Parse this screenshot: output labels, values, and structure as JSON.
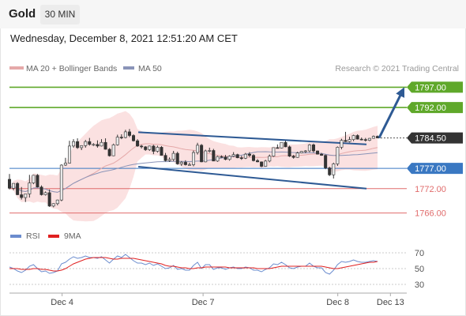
{
  "header": {
    "symbol": "Gold",
    "timeframe": "30 MIN",
    "datetime": "Wednesday, December 8, 2021 12:51:20 AM CET"
  },
  "legend": {
    "ma20_label": "MA 20 + Bollinger Bands",
    "ma50_label": "MA 50",
    "credit": "Research © 2021 Trading Central",
    "rsi_label": "RSI",
    "rsi_ma_label": "9MA"
  },
  "colors": {
    "candle_up": "#e8e8e8",
    "candle_down": "#333333",
    "resistance": "#5fa82a",
    "pivot": "#3a78c2",
    "support": "#e06b6b",
    "last_price": "#333333",
    "channel": "#2e5a94",
    "bollinger": "#fadada",
    "ma20": "#e5a9a9",
    "ma50": "#8a94b8",
    "rsi": "#6b8cce",
    "rsi_ma": "#e02020"
  },
  "chart_data": [
    {
      "type": "candlestick",
      "title": "Gold",
      "timeframe": "30 MIN",
      "x_ticks": [
        "Dec 4",
        "Dec 7",
        "Dec 8",
        "Dec 13"
      ],
      "ylim": [
        1763,
        1800
      ],
      "levels": [
        {
          "value": 1797.0,
          "label": "1797.00",
          "kind": "resistance"
        },
        {
          "value": 1792.0,
          "label": "1792.00",
          "kind": "resistance"
        },
        {
          "value": 1784.5,
          "label": "1784.50",
          "kind": "last"
        },
        {
          "value": 1777.0,
          "label": "1777.00",
          "kind": "pivot"
        },
        {
          "value": 1772.0,
          "label": "1772.00",
          "kind": "support"
        },
        {
          "value": 1766.0,
          "label": "1766.00",
          "kind": "support"
        }
      ],
      "channel": {
        "upper": [
          [
            0.35,
            1785.9
          ],
          [
            0.97,
            1782.9
          ]
        ],
        "lower": [
          [
            0.35,
            1777.4
          ],
          [
            0.97,
            1772.0
          ]
        ]
      },
      "forecast_arrow": {
        "from": 1784.5,
        "to": 1797.0
      },
      "series": {
        "open": [
          1774.3,
          1772.1,
          1773.3,
          1770.5,
          1769.8,
          1770.7,
          1773.4,
          1775.3,
          1772.4,
          1770.5,
          1771.0,
          1767.7,
          1768.3,
          1769.2,
          1777.8,
          1778.3,
          1782.5,
          1783.6,
          1782.1,
          1782.6,
          1783.6,
          1782.9,
          1782.9,
          1782.5,
          1783.4,
          1781.7,
          1780.1,
          1782.8,
          1784.7,
          1784.6,
          1786.0,
          1785.1,
          1783.8,
          1782.5,
          1782.3,
          1781.6,
          1782.5,
          1781.2,
          1782.2,
          1780.2,
          1778.9,
          1779.2,
          1780.7,
          1778.1,
          1778.5,
          1777.9,
          1777.9,
          1780.9,
          1782.7,
          1778.6,
          1781.3,
          1781.4,
          1778.8,
          1779.9,
          1779.8,
          1779.2,
          1780.0,
          1780.4,
          1779.6,
          1779.5,
          1780.5,
          1780.2,
          1778.9,
          1778.6,
          1777.5,
          1778.8,
          1780.0,
          1782.1,
          1782.0,
          1783.4,
          1782.3,
          1780.0,
          1779.7,
          1780.8,
          1781.2,
          1781.3,
          1782.8,
          1781.3,
          1780.5,
          1780.2,
          1777.1,
          1775.4,
          1778.1,
          1782.2,
          1783.9,
          1783.6,
          1784.1,
          1785.1,
          1784.2,
          1784.1,
          1783.9,
          1784.4,
          1784.9
        ],
        "high": [
          1775.6,
          1773.1,
          1773.6,
          1772.4,
          1770.6,
          1775.4,
          1775.4,
          1775.6,
          1772.8,
          1771.3,
          1771.8,
          1768.4,
          1769.3,
          1778.0,
          1779.6,
          1783.8,
          1784.2,
          1784.4,
          1782.7,
          1784.0,
          1784.5,
          1783.2,
          1783.9,
          1784.2,
          1784.4,
          1782.0,
          1783.1,
          1785.3,
          1785.4,
          1786.5,
          1786.7,
          1785.4,
          1784.2,
          1782.8,
          1782.5,
          1782.6,
          1782.8,
          1782.6,
          1782.5,
          1780.8,
          1779.7,
          1781.3,
          1781.1,
          1778.8,
          1779.0,
          1778.4,
          1781.4,
          1783.3,
          1783.0,
          1781.6,
          1782.1,
          1781.8,
          1780.1,
          1780.2,
          1780.3,
          1780.2,
          1781.0,
          1780.6,
          1780.1,
          1780.8,
          1781.0,
          1780.5,
          1779.3,
          1778.7,
          1779.1,
          1780.4,
          1782.1,
          1782.9,
          1783.4,
          1783.8,
          1782.6,
          1780.3,
          1781.1,
          1781.3,
          1781.5,
          1783.0,
          1783.1,
          1781.4,
          1780.8,
          1780.4,
          1777.4,
          1778.4,
          1782.4,
          1784.3,
          1786.0,
          1784.8,
          1785.3,
          1785.4,
          1784.6,
          1784.5,
          1784.5,
          1785.1,
          1785.1
        ],
        "low": [
          1771.8,
          1771.6,
          1770.4,
          1769.3,
          1768.7,
          1769.8,
          1773.1,
          1772.3,
          1770.3,
          1770.3,
          1767.5,
          1767.4,
          1767.9,
          1768.9,
          1777.6,
          1778.2,
          1782.1,
          1781.8,
          1781.5,
          1782.1,
          1782.6,
          1782.5,
          1782.1,
          1782.4,
          1781.6,
          1779.9,
          1780.0,
          1782.6,
          1784.2,
          1784.4,
          1784.7,
          1783.6,
          1782.3,
          1781.9,
          1781.3,
          1781.3,
          1780.5,
          1780.9,
          1780.3,
          1778.7,
          1778.6,
          1778.8,
          1777.9,
          1777.6,
          1777.7,
          1777.7,
          1777.5,
          1780.4,
          1778.5,
          1778.5,
          1780.9,
          1778.8,
          1778.6,
          1779.6,
          1779.0,
          1778.9,
          1779.8,
          1779.5,
          1779.1,
          1779.3,
          1779.8,
          1778.7,
          1778.5,
          1777.3,
          1777.4,
          1778.5,
          1779.8,
          1781.9,
          1781.9,
          1782.2,
          1779.8,
          1779.4,
          1779.6,
          1780.7,
          1780.8,
          1781.0,
          1780.9,
          1780.4,
          1780.1,
          1776.8,
          1775.1,
          1774.5,
          1777.6,
          1781.7,
          1783.5,
          1783.4,
          1783.7,
          1784.1,
          1783.9,
          1783.6,
          1783.7,
          1784.3,
          1784.5
        ],
        "close": [
          1772.1,
          1773.3,
          1770.5,
          1769.8,
          1770.7,
          1773.4,
          1775.3,
          1772.4,
          1770.5,
          1771.0,
          1767.7,
          1768.3,
          1769.2,
          1777.8,
          1778.3,
          1782.5,
          1783.6,
          1782.1,
          1782.6,
          1783.6,
          1782.9,
          1782.9,
          1782.5,
          1783.4,
          1781.7,
          1780.1,
          1782.8,
          1784.7,
          1784.6,
          1786.0,
          1785.1,
          1783.8,
          1782.5,
          1782.3,
          1781.6,
          1782.5,
          1781.2,
          1782.2,
          1780.2,
          1778.9,
          1779.2,
          1780.7,
          1778.1,
          1778.5,
          1777.9,
          1777.9,
          1780.9,
          1782.7,
          1778.6,
          1781.3,
          1781.4,
          1778.8,
          1779.9,
          1779.8,
          1779.2,
          1780.0,
          1780.4,
          1779.6,
          1779.5,
          1780.5,
          1780.2,
          1778.9,
          1778.6,
          1777.5,
          1778.8,
          1780.0,
          1782.1,
          1782.0,
          1783.4,
          1782.3,
          1780.0,
          1779.7,
          1780.8,
          1781.2,
          1781.3,
          1782.8,
          1781.3,
          1780.5,
          1780.2,
          1777.1,
          1775.4,
          1778.1,
          1782.2,
          1783.9,
          1783.6,
          1784.1,
          1785.1,
          1784.2,
          1784.1,
          1783.9,
          1784.4,
          1784.9,
          1784.5
        ]
      }
    },
    {
      "type": "line",
      "title": "RSI",
      "ylim": [
        20,
        80
      ],
      "y_ticks": [
        70,
        50,
        30
      ],
      "series": [
        {
          "name": "RSI",
          "values": [
            52,
            50,
            47,
            45,
            48,
            53,
            55,
            50,
            46,
            47,
            44,
            45,
            47,
            56,
            58,
            62,
            65,
            63,
            64,
            66,
            64,
            64,
            63,
            65,
            61,
            57,
            62,
            66,
            64,
            68,
            64,
            60,
            57,
            57,
            55,
            57,
            54,
            56,
            53,
            50,
            51,
            54,
            49,
            50,
            48,
            48,
            54,
            58,
            50,
            55,
            55,
            49,
            51,
            51,
            49,
            51,
            52,
            50,
            50,
            52,
            51,
            48,
            48,
            46,
            49,
            51,
            56,
            55,
            58,
            55,
            51,
            50,
            52,
            53,
            53,
            57,
            53,
            51,
            51,
            45,
            43,
            48,
            55,
            59,
            58,
            59,
            61,
            59,
            58,
            58,
            59,
            60,
            59
          ]
        },
        {
          "name": "9MA",
          "values": [
            50,
            50,
            50,
            49,
            49,
            49,
            50,
            50,
            49,
            49,
            48,
            47,
            47,
            48,
            50,
            53,
            56,
            58,
            60,
            62,
            63,
            64,
            64,
            64,
            64,
            63,
            62,
            62,
            63,
            63,
            63,
            63,
            62,
            61,
            60,
            59,
            58,
            57,
            56,
            54,
            53,
            53,
            52,
            51,
            51,
            50,
            50,
            51,
            51,
            52,
            52,
            52,
            52,
            52,
            52,
            51,
            51,
            51,
            51,
            51,
            51,
            51,
            50,
            50,
            50,
            50,
            51,
            52,
            53,
            53,
            53,
            53,
            53,
            53,
            53,
            53,
            53,
            53,
            53,
            52,
            51,
            50,
            50,
            51,
            52,
            53,
            54,
            55,
            56,
            57,
            58,
            58,
            59
          ]
        }
      ]
    }
  ]
}
